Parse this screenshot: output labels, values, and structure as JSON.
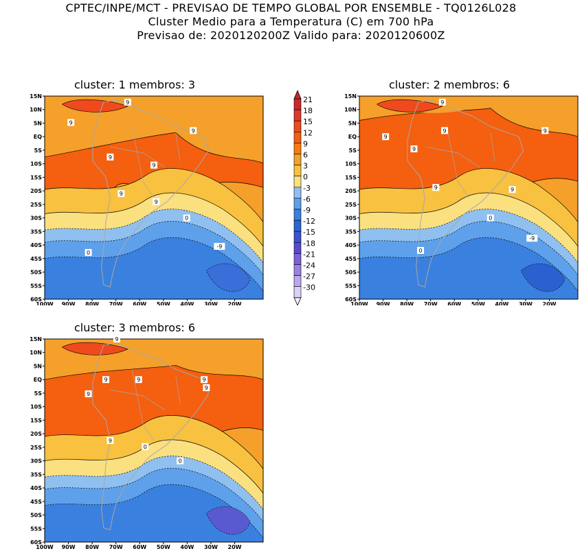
{
  "header": {
    "line1": "CPTEC/INPE/MCT - PREVISAO DE TEMPO GLOBAL POR ENSEMBLE - TQ0126L028",
    "line2": "Cluster Medio para a Temperatura (C) em 700 hPa",
    "line3": "Previsao de: 2020120200Z   Valido para: 2020120600Z"
  },
  "maps": [
    {
      "title": "cluster: 1   membros: 3"
    },
    {
      "title": "cluster: 2   membros: 6"
    },
    {
      "title": "cluster: 3   membros: 6"
    }
  ],
  "lat_ticks": [
    "15N",
    "10N",
    "5N",
    "EQ",
    "5S",
    "10S",
    "15S",
    "20S",
    "25S",
    "30S",
    "35S",
    "40S",
    "45S",
    "50S",
    "55S",
    "60S"
  ],
  "lon_ticks": [
    "100W",
    "90W",
    "80W",
    "70W",
    "60W",
    "50W",
    "40W",
    "30W",
    "20W"
  ],
  "colorbar": {
    "labels": [
      "21",
      "18",
      "15",
      "12",
      "9",
      "6",
      "3",
      "0",
      "-3",
      "-6",
      "-9",
      "-12",
      "-15",
      "-18",
      "-21",
      "-24",
      "-27",
      "-30"
    ],
    "colors": [
      "#c8282a",
      "#e0382a",
      "#ee4a1e",
      "#f45f10",
      "#f97a0e",
      "#f4a02a",
      "#f8c140",
      "#fbe080",
      "#8fc0f0",
      "#5ea0ea",
      "#3a80de",
      "#2a66d2",
      "#3a52d0",
      "#5a4acc",
      "#7a62d8",
      "#9a82e2",
      "#baa8ec",
      "#dcd0f6"
    ]
  },
  "contour_labels": {
    "map1": [
      "9",
      "9",
      "9",
      "9",
      "9",
      "9",
      "9",
      "0",
      "0",
      "-9"
    ],
    "map2": [
      "9",
      "9",
      "9",
      "9",
      "9",
      "9",
      "9",
      "0",
      "0",
      "-9"
    ],
    "map3": [
      "9",
      "9",
      "9",
      "9",
      "9",
      "9",
      "9",
      "0",
      "0"
    ]
  }
}
